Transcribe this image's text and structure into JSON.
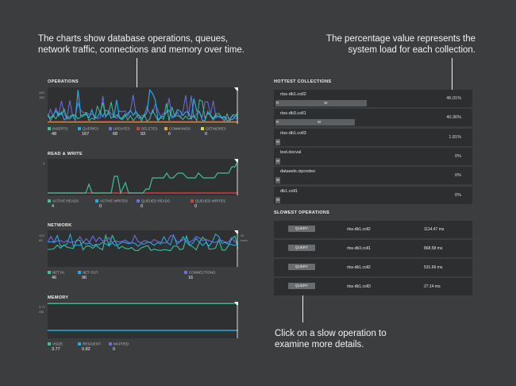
{
  "annotations": {
    "charts_note_line1": "The charts show database operations, queues,",
    "charts_note_line2": "network traffic, connections and memory over time.",
    "pct_note_line1": "The percentage value represents the",
    "pct_note_line2": "system load for each collection.",
    "click_note_line1": "Click on a slow operation to",
    "click_note_line2": "examine more details."
  },
  "operations": {
    "title": "OPERATIONS",
    "y_top": "433",
    "y_mid": "169",
    "legend": [
      {
        "name": "INSERTS",
        "value": "48",
        "color": "#3fbf9a"
      },
      {
        "name": "QUERIES",
        "value": "167",
        "color": "#27a9e1"
      },
      {
        "name": "UPDATES",
        "value": "68",
        "color": "#6d6de0"
      },
      {
        "name": "DELETES",
        "value": "93",
        "color": "#c84040"
      },
      {
        "name": "COMMANDS",
        "value": "6",
        "color": "#e8a030"
      },
      {
        "name": "GETMORES",
        "value": "0",
        "color": "#d8d840"
      }
    ]
  },
  "read_write": {
    "title": "READ & WRITE",
    "y_top": "4",
    "legend": [
      {
        "name": "ACTIVE READS",
        "value": "4",
        "color": "#3fbf9a"
      },
      {
        "name": "ACTIVE WRITES",
        "value": "0",
        "color": "#27a9e1"
      },
      {
        "name": "QUEUED READS",
        "value": "0",
        "color": "#6d6de0"
      },
      {
        "name": "QUEUED WRITES",
        "value": "0",
        "color": "#c84040"
      }
    ]
  },
  "network": {
    "title": "NETWORK",
    "y_top": "124",
    "y_mid": "63",
    "y_right_top": "20",
    "y_right_unit": "conn",
    "legend": [
      {
        "name": "NET IN",
        "value": "46",
        "color": "#3fbf9a"
      },
      {
        "name": "NET OUT",
        "value": "96",
        "color": "#27a9e1"
      },
      {
        "name": "CONNECTIONS",
        "value": "16",
        "color": "#6d6de0"
      }
    ]
  },
  "memory": {
    "title": "MEMORY",
    "y_top": "3.77",
    "y_unit": "GB",
    "legend": [
      {
        "name": "VSIZE",
        "value": "3.77",
        "color": "#3fbf9a"
      },
      {
        "name": "RESIDENT",
        "value": "0.82",
        "color": "#27a9e1"
      },
      {
        "name": "MAPPED",
        "value": "0",
        "color": "#6d6de0"
      }
    ]
  },
  "hottest": {
    "title": "HOTTEST COLLECTIONS",
    "rows": [
      {
        "name": "rtss-db1.coll2",
        "pct": "46.01%",
        "load": 0.46,
        "r": "R",
        "w": "W"
      },
      {
        "name": "rtss-db3.coll1",
        "pct": "40.36%",
        "load": 0.4,
        "r": "R",
        "w": "W"
      },
      {
        "name": "rtss-db1.coll3",
        "pct": "1.81%",
        "load": 0.018,
        "r": "",
        "w": "W"
      },
      {
        "name": "test.docval",
        "pct": "0%",
        "load": 0,
        "r": "",
        "w": "W"
      },
      {
        "name": "datasets.zipcodes",
        "pct": "0%",
        "load": 0,
        "r": "",
        "w": "W"
      },
      {
        "name": "db1.coll1",
        "pct": "0%",
        "load": 0,
        "r": "",
        "w": "W"
      }
    ]
  },
  "slowest": {
    "title": "SLOWEST OPERATIONS",
    "rows": [
      {
        "button": "QUERY",
        "collection": "rtss-db1.coll2",
        "time": "1114.47 ms"
      },
      {
        "button": "QUERY",
        "collection": "rtss-db3.coll1",
        "time": "868.58 ms"
      },
      {
        "button": "QUERY",
        "collection": "rtss-db1.coll2",
        "time": "531.69 ms"
      },
      {
        "button": "QUERY",
        "collection": "rtss-db1.coll3",
        "time": "27.14 ms"
      }
    ]
  }
}
